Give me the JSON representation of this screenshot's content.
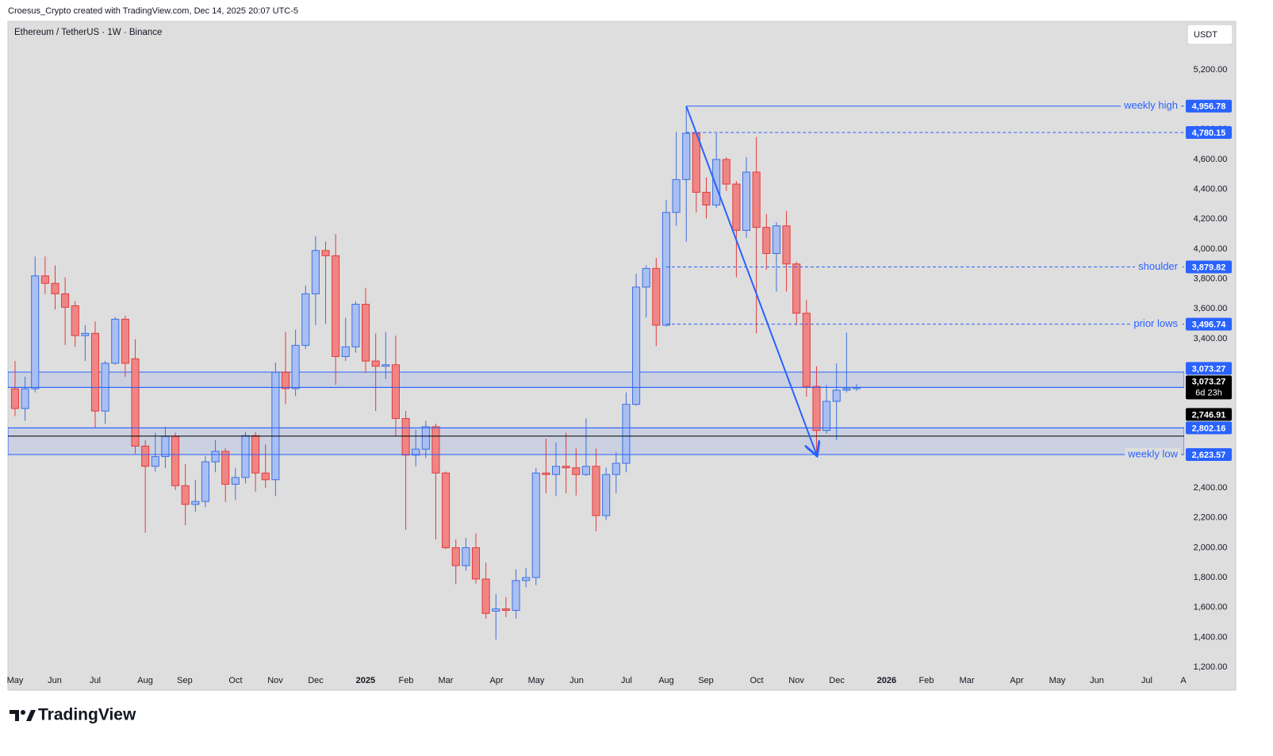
{
  "header": {
    "credit": "Croesus_Crypto created with TradingView.com, Dec 14, 2025 20:07 UTC-5"
  },
  "brand": "TradingView",
  "chart_data": {
    "type": "candlestick",
    "title": "Ethereum / TetherUS · 1W · Binance",
    "currency": "USDT",
    "up_color": "#3b6fe0",
    "up_fill": "#a9bff3",
    "down_color": "#e23b3b",
    "down_fill": "#f08585",
    "grid": false,
    "x": [
      0,
      1,
      2,
      3,
      4,
      5,
      6,
      7,
      8,
      9,
      10,
      11,
      12,
      13,
      14,
      15,
      16,
      17,
      18,
      19,
      20,
      21,
      22,
      23,
      24,
      25,
      26,
      27,
      28,
      29,
      30,
      31,
      32,
      33,
      34,
      35,
      36,
      37,
      38,
      39,
      40,
      41,
      42,
      43,
      44,
      45,
      46,
      47,
      48,
      49,
      50,
      51,
      52,
      53,
      54,
      55,
      56,
      57,
      58,
      59,
      60,
      61,
      62,
      63,
      64,
      65,
      66,
      67,
      68,
      69,
      70,
      71,
      72,
      73,
      74,
      75,
      76,
      77,
      78,
      79,
      80,
      81,
      82,
      83,
      84
    ],
    "open": [
      3064,
      2932,
      3064,
      3820,
      3770,
      3700,
      3620,
      3420,
      3435,
      2915,
      3235,
      3530,
      3265,
      2680,
      2545,
      2610,
      2745,
      2415,
      2290,
      2310,
      2575,
      2645,
      2425,
      2470,
      2750,
      2500,
      2455,
      3175,
      3065,
      3355,
      3700,
      3990,
      3955,
      3280,
      3345,
      3630,
      3250,
      3215,
      3225,
      2865,
      2620,
      2660,
      2810,
      2500,
      2000,
      1880,
      2000,
      1790,
      1575,
      1590,
      1580,
      1780,
      1800,
      2500,
      2490,
      2545,
      2535,
      2490,
      2545,
      2215,
      2490,
      2565,
      2960,
      3745,
      3870,
      3490,
      4245,
      4465,
      4775,
      4380,
      4295,
      4600,
      4435,
      4125,
      4515,
      4145,
      3970,
      4155,
      3900,
      3570,
      3080,
      2785,
      2980,
      3055,
      3065
    ],
    "high": [
      3250,
      3145,
      3950,
      3950,
      3890,
      3810,
      3650,
      3490,
      3515,
      3250,
      3545,
      3555,
      3395,
      2720,
      2770,
      2810,
      2770,
      2560,
      2455,
      2615,
      2720,
      2665,
      2535,
      2775,
      2775,
      2690,
      3240,
      3445,
      3460,
      3755,
      4085,
      4050,
      4100,
      3540,
      3650,
      3740,
      3435,
      3445,
      3420,
      2915,
      2790,
      2850,
      2830,
      2510,
      2055,
      2065,
      2095,
      1900,
      1690,
      1670,
      1855,
      1865,
      2535,
      2730,
      2705,
      2770,
      2665,
      2865,
      2665,
      2535,
      2640,
      3040,
      3835,
      3890,
      3940,
      4330,
      4785,
      4956.78,
      4790,
      4480,
      4775,
      4615,
      4455,
      4615,
      4750,
      4235,
      4180,
      4255,
      3915,
      3660,
      3215,
      3090,
      3235,
      3440,
      3095
    ],
    "low": [
      2880,
      2850,
      3040,
      3700,
      3595,
      3357,
      3345,
      3250,
      2800,
      2830,
      3225,
      3145,
      2630,
      2100,
      2510,
      2535,
      2385,
      2150,
      2240,
      2270,
      2505,
      2305,
      2320,
      2430,
      2375,
      2400,
      2345,
      2960,
      3015,
      3330,
      3490,
      3500,
      3090,
      3250,
      3305,
      3170,
      2915,
      3130,
      2745,
      2120,
      2545,
      2600,
      2055,
      1990,
      1755,
      1845,
      1760,
      1525,
      1385,
      1535,
      1525,
      1735,
      1750,
      2365,
      2345,
      2365,
      2350,
      2480,
      2110,
      2185,
      2365,
      2505,
      2950,
      3540,
      3350,
      3480,
      4155,
      4050,
      4245,
      4205,
      4275,
      4390,
      3810,
      4075,
      3435,
      3860,
      3715,
      3715,
      3490,
      3010,
      2623.57,
      2765,
      2720,
      3040,
      3050
    ],
    "close": [
      2932,
      3064,
      3820,
      3770,
      3700,
      3610,
      3420,
      3435,
      2915,
      3235,
      3530,
      3235,
      2680,
      2545,
      2610,
      2745,
      2415,
      2290,
      2310,
      2575,
      2645,
      2425,
      2470,
      2750,
      2500,
      2455,
      3175,
      3065,
      3355,
      3700,
      3990,
      3955,
      3280,
      3345,
      3630,
      3250,
      3215,
      3225,
      2865,
      2620,
      2660,
      2810,
      2500,
      2000,
      1880,
      2000,
      1790,
      1560,
      1590,
      1580,
      1780,
      1800,
      2500,
      2490,
      2545,
      2535,
      2490,
      2545,
      2215,
      2490,
      2565,
      2960,
      3745,
      3870,
      3490,
      4245,
      4465,
      4775,
      4380,
      4295,
      4600,
      4435,
      4125,
      4515,
      4145,
      3970,
      4155,
      3900,
      3570,
      3080,
      2785,
      2980,
      3055,
      3065,
      3073.27
    ],
    "xlim": [
      -0.71,
      116.7
    ],
    "xticks": [
      {
        "value": 0,
        "label": "May"
      },
      {
        "value": 3.96,
        "label": "Jun"
      },
      {
        "value": 8.0,
        "label": "Jul"
      },
      {
        "value": 12.99,
        "label": "Aug"
      },
      {
        "value": 16.94,
        "label": "Sep"
      },
      {
        "value": 22.01,
        "label": "Oct"
      },
      {
        "value": 25.97,
        "label": "Nov"
      },
      {
        "value": 30.01,
        "label": "Dec"
      },
      {
        "value": 34.99,
        "label": "2025"
      },
      {
        "value": 39.03,
        "label": "Feb"
      },
      {
        "value": 42.99,
        "label": "Mar"
      },
      {
        "value": 48.06,
        "label": "Apr"
      },
      {
        "value": 52.02,
        "label": "May"
      },
      {
        "value": 56.06,
        "label": "Jun"
      },
      {
        "value": 61.04,
        "label": "Jul"
      },
      {
        "value": 65.0,
        "label": "Aug"
      },
      {
        "value": 68.96,
        "label": "Sep"
      },
      {
        "value": 74.03,
        "label": "Oct"
      },
      {
        "value": 77.99,
        "label": "Nov"
      },
      {
        "value": 82.03,
        "label": "Dec"
      },
      {
        "value": 87.0,
        "label": "2026"
      },
      {
        "value": 90.97,
        "label": "Feb"
      },
      {
        "value": 95.01,
        "label": "Mar"
      },
      {
        "value": 99.99,
        "label": "Apr"
      },
      {
        "value": 104.03,
        "label": "May"
      },
      {
        "value": 107.99,
        "label": "Jun"
      },
      {
        "value": 112.97,
        "label": "Jul"
      },
      {
        "value": 116.62,
        "label": "A"
      }
    ],
    "ylim": [
      1178.8,
      5524.1
    ],
    "yticks": [
      {
        "value": 5200,
        "label": "5,200.00"
      },
      {
        "value": 4800,
        "label": "4,800.00"
      },
      {
        "value": 4600,
        "label": "4,600.00"
      },
      {
        "value": 4400,
        "label": "4,400.00"
      },
      {
        "value": 4200,
        "label": "4,200.00"
      },
      {
        "value": 4000,
        "label": "4,000.00"
      },
      {
        "value": 3800,
        "label": "3,800.00"
      },
      {
        "value": 3600,
        "label": "3,600.00"
      },
      {
        "value": 3400,
        "label": "3,400.00"
      },
      {
        "value": 3200,
        "label": "3,200.00"
      },
      {
        "value": 2400,
        "label": "2,400.00"
      },
      {
        "value": 2200,
        "label": "2,200.00"
      },
      {
        "value": 2000,
        "label": "2,000.00"
      },
      {
        "value": 1800,
        "label": "1,800.00"
      },
      {
        "value": 1600,
        "label": "1,600.00"
      },
      {
        "value": 1400,
        "label": "1,400.00"
      },
      {
        "value": 1200,
        "label": "1,200.00"
      }
    ],
    "zones": [
      {
        "from": 3073.27,
        "to": 3176
      },
      {
        "from": 2623.57,
        "to": 2802.16
      }
    ],
    "levels": [
      {
        "value": 4956.78,
        "value_label": "4,956.78",
        "label": "weekly high",
        "style": "solid",
        "x_start": 67,
        "color": "#2962ff"
      },
      {
        "value": 4780.15,
        "value_label": "4,780.15",
        "style": "dashed",
        "x_start": 67,
        "color": "#2962ff"
      },
      {
        "value": 3879.82,
        "value_label": "3,879.82",
        "label": "shoulder",
        "style": "dashed",
        "x_start": 65,
        "color": "#2962ff"
      },
      {
        "value": 3496.74,
        "value_label": "3,496.74",
        "label": "prior lows",
        "style": "dashed",
        "x_start": 65,
        "color": "#2962ff"
      },
      {
        "value": 3073.27,
        "value_label": "3,073.27",
        "style": "solid",
        "color": "#2962ff"
      },
      {
        "value": 2802.16,
        "value_label": "2,802.16",
        "style": "solid",
        "color": "#2962ff"
      },
      {
        "value": 2746.91,
        "value_label": "2,746.91",
        "style": "solid",
        "color": "#000000"
      },
      {
        "value": 2623.57,
        "value_label": "2,623.57",
        "label": "weekly low",
        "style": "solid",
        "color": "#2962ff"
      }
    ],
    "last": {
      "value": 3073.27,
      "value_label": "3,073.27",
      "countdown": "6d 23h",
      "color": "#000000"
    },
    "arrow": {
      "x": [
        67,
        80
      ],
      "y": [
        4956.78,
        2623.57
      ],
      "color": "#2962ff"
    }
  }
}
